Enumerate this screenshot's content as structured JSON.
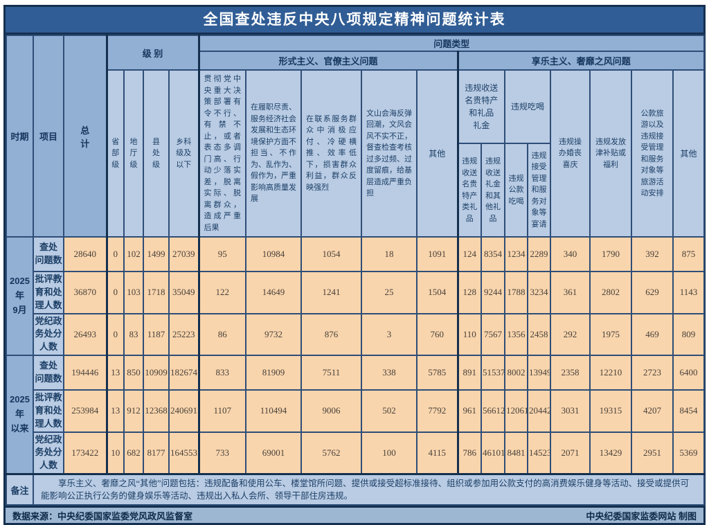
{
  "title": "全国查处违反中央八项规定精神问题统计表",
  "chart_data": {
    "type": "table",
    "title": "全国查处违反中央八项规定精神问题统计表",
    "header": {
      "period": "时期",
      "item": "项目",
      "total": "总\n计",
      "level_group": "级 别",
      "problem_type_group": "问题类型",
      "formalism_group": "形式主义、官僚主义问题",
      "hedonism_group": "享乐主义、奢靡之风问题",
      "levels": [
        "省\n部\n级",
        "地\n厅\n级",
        "县\n处\n级",
        "乡科\n级及\n以下"
      ],
      "formalism_cols": [
        "贯彻党中央重大决策部署有令不行、有禁不止，或者表态多调门高、行动少落实差，脱离实际、脱离群众，造成严重后果",
        "在履职尽责、服务经济社会发展和生态环境保护方面不担当、不作为、乱作为、假作为，严重影响高质量发展",
        "在联系服务群众中消极应付、冷硬横推、效率低下，损害群众利益，群众反映强烈",
        "文山会海反弹回潮，文风会风不实不正，督查检查考核过多过频、过度留痕，给基层造成严重负担",
        "其他"
      ],
      "gift_group": "违规收送\n名贵特产\n和礼品\n礼金",
      "dining_group": "违规吃喝",
      "gift_cols": [
        "违规收送名贵特产类礼品",
        "违规收送礼金和其他礼品"
      ],
      "dining_cols": [
        "违规公款吃喝",
        "违规接受管理和服务对象等宴请"
      ],
      "hedonism_cols": [
        "违规操办婚丧喜庆",
        "违规发放津补贴或福利",
        "公款旅游以及违规接受管理和服务对象等旅游活动安排",
        "其他"
      ]
    },
    "rows": [
      {
        "period": "2025年\n9月",
        "label": "查处\n问题数",
        "values": [
          28640,
          0,
          102,
          1499,
          27039,
          95,
          10984,
          1054,
          18,
          1091,
          124,
          8354,
          1234,
          2289,
          340,
          1790,
          392,
          875
        ]
      },
      {
        "label": "批评教\n育和处\n理人数",
        "values": [
          36870,
          0,
          103,
          1718,
          35049,
          122,
          14649,
          1241,
          25,
          1504,
          128,
          9244,
          1788,
          3234,
          361,
          2802,
          629,
          1143
        ]
      },
      {
        "label": "党纪政\n务处分\n人数",
        "values": [
          26493,
          0,
          83,
          1187,
          25223,
          86,
          9732,
          876,
          3,
          760,
          110,
          7567,
          1356,
          2458,
          292,
          1975,
          469,
          809
        ]
      },
      {
        "period": "2025年\n以来",
        "label": "查处\n问题数",
        "values": [
          194446,
          13,
          850,
          10909,
          182674,
          833,
          81909,
          7511,
          338,
          5785,
          891,
          51537,
          8002,
          13949,
          2358,
          12210,
          2723,
          6400
        ]
      },
      {
        "label": "批评教\n育和处\n理人数",
        "values": [
          253984,
          13,
          912,
          12368,
          240691,
          1107,
          110494,
          9006,
          502,
          7792,
          961,
          56612,
          12061,
          20442,
          3031,
          19315,
          4207,
          8454
        ]
      },
      {
        "label": "党纪政\n务处分\n人数",
        "values": [
          173422,
          10,
          682,
          8177,
          164553,
          733,
          69001,
          5762,
          100,
          4115,
          786,
          46101,
          8481,
          14523,
          2071,
          13429,
          2951,
          5369
        ]
      }
    ]
  },
  "note": {
    "label": "备注",
    "text": "享乐主义、奢靡之风“其他”问题包括：违规配备和使用公车、楼堂馆所问题、提供或接受超标准接待、组织或参加用公款支付的高消费娱乐健身等活动、接受或提供可能影响公正执行公务的健身娱乐等活动、违规出入私人会所、领导干部住房违规。"
  },
  "source": {
    "left": "数据来源：中央纪委国家监委党风政风监督室",
    "right": "中央纪委国家监委网站 制图"
  },
  "colors": {
    "title_bar": "#305d95",
    "frame_border": "#15304f",
    "header_medium": "#92b0d4",
    "header_light": "#b9cce4",
    "data_cell": "#f9d5ad",
    "source_bar": "#9db7d3",
    "header_text": "#16355c",
    "data_text": "#47413a"
  }
}
